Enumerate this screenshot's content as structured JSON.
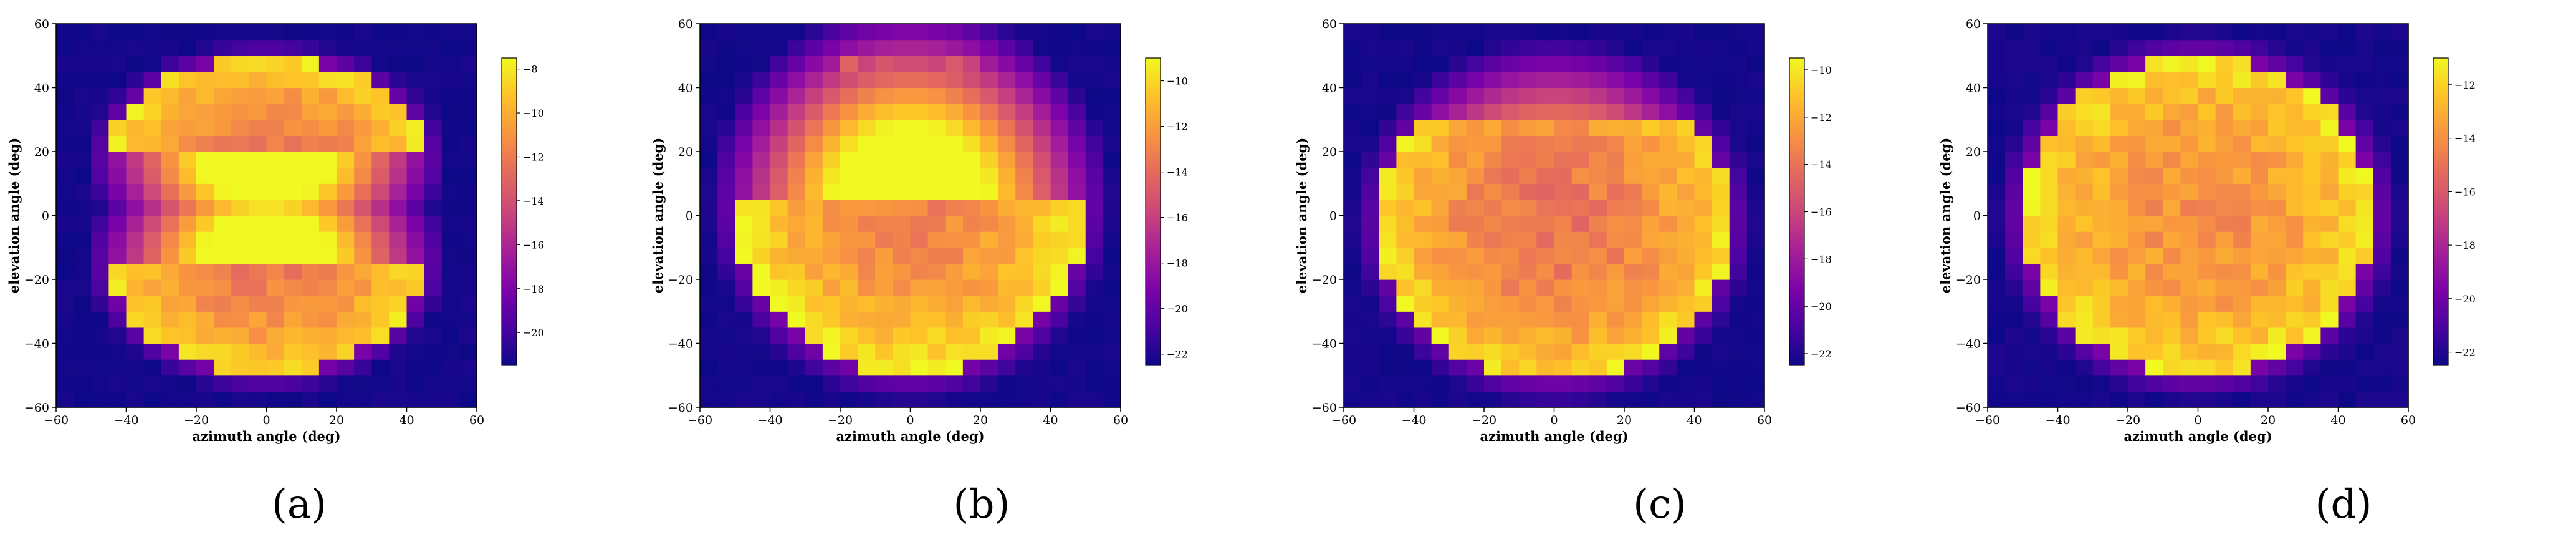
{
  "chart_data": [
    {
      "type": "heatmap",
      "caption": "(a)",
      "xlabel": "azimuth angle (deg)",
      "ylabel": "elevation angle (deg)",
      "xlim": [
        -60,
        60
      ],
      "ylim": [
        -60,
        60
      ],
      "xticks": [
        -60,
        -40,
        -20,
        0,
        20,
        40,
        60
      ],
      "yticks": [
        -60,
        -40,
        -20,
        0,
        20,
        40,
        60
      ],
      "grid": false,
      "colormap": "plasma",
      "colorbar_range": [
        -21.5,
        -7.5
      ],
      "colorbar_ticks": [
        -8,
        -10,
        -12,
        -14,
        -16,
        -18,
        -20
      ],
      "regions": [
        {
          "shape": "upper-half-disc",
          "center": [
            0,
            18
          ],
          "az_radius": 45,
          "el_radius": 32,
          "peak": -8,
          "edge": -12
        },
        {
          "shape": "lower-half-disc",
          "center": [
            0,
            -14
          ],
          "az_radius": 45,
          "el_radius": 36,
          "peak": -8,
          "edge": -12
        }
      ],
      "background": -21.5
    },
    {
      "type": "heatmap",
      "caption": "(b)",
      "xlabel": "azimuth angle (deg)",
      "ylabel": "elevation angle (deg)",
      "xlim": [
        -60,
        60
      ],
      "ylim": [
        -60,
        60
      ],
      "xticks": [
        -60,
        -40,
        -20,
        0,
        20,
        40,
        60
      ],
      "yticks": [
        -60,
        -40,
        -20,
        0,
        20,
        40,
        60
      ],
      "grid": false,
      "colormap": "plasma",
      "colorbar_range": [
        -22.5,
        -9
      ],
      "colorbar_ticks": [
        -10,
        -12,
        -14,
        -16,
        -18,
        -20,
        -22
      ],
      "regions": [
        {
          "shape": "band",
          "az_range": [
            -20,
            20
          ],
          "el_range": [
            40,
            48
          ],
          "peak": -12,
          "edge": -16
        },
        {
          "shape": "lower-half-disc",
          "center": [
            0,
            4
          ],
          "az_radius": 50,
          "el_radius": 54,
          "peak": -9,
          "edge": -13
        }
      ],
      "background": -22.5
    },
    {
      "type": "heatmap",
      "caption": "(c)",
      "xlabel": "azimuth angle (deg)",
      "ylabel": "elevation angle (deg)",
      "xlim": [
        -60,
        60
      ],
      "ylim": [
        -60,
        60
      ],
      "xticks": [
        -60,
        -40,
        -20,
        0,
        20,
        40,
        60
      ],
      "yticks": [
        -60,
        -40,
        -20,
        0,
        20,
        40,
        60
      ],
      "grid": false,
      "colormap": "plasma",
      "colorbar_range": [
        -22.5,
        -9.5
      ],
      "colorbar_ticks": [
        -10,
        -12,
        -14,
        -16,
        -18,
        -20,
        -22
      ],
      "regions": [
        {
          "shape": "truncated-disc",
          "center": [
            0,
            -2
          ],
          "az_radius": 50,
          "el_radius": 50,
          "top_cut": 30,
          "peak": -10,
          "edge": -14
        }
      ],
      "background": -22.5
    },
    {
      "type": "heatmap",
      "caption": "(d)",
      "xlabel": "azimuth angle (deg)",
      "ylabel": "elevation angle (deg)",
      "xlim": [
        -60,
        60
      ],
      "ylim": [
        -60,
        60
      ],
      "xticks": [
        -60,
        -40,
        -20,
        0,
        20,
        40,
        60
      ],
      "yticks": [
        -60,
        -40,
        -20,
        0,
        20,
        40,
        60
      ],
      "grid": false,
      "colormap": "plasma",
      "colorbar_range": [
        -22.5,
        -11
      ],
      "colorbar_ticks": [
        -12,
        -14,
        -16,
        -18,
        -20,
        -22
      ],
      "regions": [
        {
          "shape": "disc",
          "center": [
            0,
            0
          ],
          "az_radius": 50,
          "el_radius": 50,
          "peak": -11.5,
          "edge": -14
        }
      ],
      "background": -22.5
    }
  ]
}
